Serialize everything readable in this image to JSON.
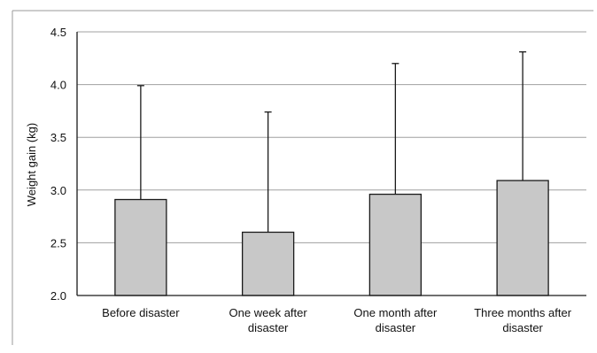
{
  "chart_data": {
    "type": "bar",
    "categories": [
      [
        "Before disaster"
      ],
      [
        "One week after",
        "disaster"
      ],
      [
        "One month after",
        "disaster"
      ],
      [
        "Three months after",
        "disaster"
      ]
    ],
    "values": [
      2.91,
      2.6,
      2.96,
      3.09
    ],
    "error_upper": [
      3.99,
      3.74,
      4.2,
      4.31
    ],
    "ylabel": "Weight gain (kg)",
    "xlabel": "",
    "title": "",
    "ylim": [
      2.0,
      4.5
    ],
    "yticks": [
      "2.0",
      "2.5",
      "3.0",
      "3.5",
      "4.0",
      "4.5"
    ],
    "grid": true,
    "legend": "none",
    "colors": {
      "bar_fill": "#c8c8c8",
      "bar_stroke": "#1a1a1a",
      "grid": "#a0a0a0",
      "axis": "#1a1a1a",
      "frame": "#9a9a9a"
    }
  }
}
